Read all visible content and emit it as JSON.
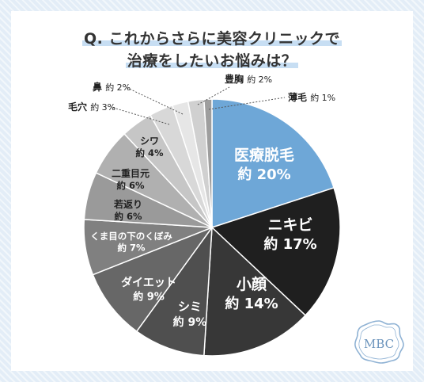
{
  "title": {
    "line1": "Q. これからさらに美容クリニックで",
    "line2": "治療をしたいお悩みは？"
  },
  "brand": {
    "logo_text": "MBC"
  },
  "colors": {
    "background": "#e3edf7",
    "highlight": "#c7def3",
    "accent_slice": "#6ea7d7"
  },
  "chart_data": {
    "type": "pie",
    "start_angle_deg": 0,
    "direction": "clockwise",
    "slices": [
      {
        "label": "医療脱毛",
        "value": 20,
        "value_label": "約 20%",
        "color": "#6ea7d7",
        "label_color": "#ffffff"
      },
      {
        "label": "ニキビ",
        "value": 17,
        "value_label": "約 17%",
        "color": "#1f1f1f",
        "label_color": "#ffffff"
      },
      {
        "label": "小顔",
        "value": 14,
        "value_label": "約 14%",
        "color": "#373737",
        "label_color": "#ffffff"
      },
      {
        "label": "シミ",
        "value": 9,
        "value_label": "約 9%",
        "color": "#4f4f4f",
        "label_color": "#ffffff"
      },
      {
        "label": "ダイエット",
        "value": 9,
        "value_label": "約 9%",
        "color": "#676767",
        "label_color": "#ffffff"
      },
      {
        "label": "くま目の下のくぼみ",
        "value": 7,
        "value_label": "約 7%",
        "color": "#808080",
        "label_color": "#ffffff"
      },
      {
        "label": "若返り",
        "value": 6,
        "value_label": "約 6%",
        "color": "#9a9a9a",
        "label_color": "#222222"
      },
      {
        "label": "二重目元",
        "value": 6,
        "value_label": "約 6%",
        "color": "#b0b0b0",
        "label_color": "#222222"
      },
      {
        "label": "シワ",
        "value": 4,
        "value_label": "約 4%",
        "color": "#c6c6c6",
        "label_color": "#222222"
      },
      {
        "label": "毛穴",
        "value": 3,
        "value_label": "約 3%",
        "color": "#d8d8d8",
        "label_color": "#222222",
        "outside": true
      },
      {
        "label": "鼻",
        "value": 2,
        "value_label": "約 2%",
        "color": "#e6e6e6",
        "label_color": "#222222",
        "outside": true
      },
      {
        "label": "豊胸",
        "value": 2,
        "value_label": "約 2%",
        "color": "#d0d0d0",
        "label_color": "#222222",
        "outside": true
      },
      {
        "label": "薄毛",
        "value": 1,
        "value_label": "約 1%",
        "color": "#9e9e9e",
        "label_color": "#222222",
        "outside": true
      }
    ]
  }
}
